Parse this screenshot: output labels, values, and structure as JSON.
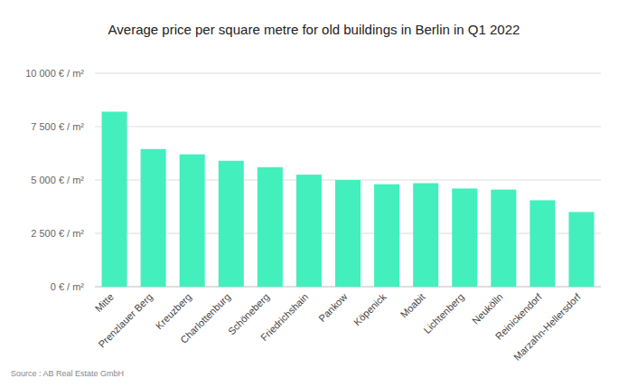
{
  "chart_data": {
    "type": "bar",
    "title": "Average price per square metre for old buildings in Berlin in Q1 2022",
    "categories": [
      "Mitte",
      "Prenzlauer Berg",
      "Kreuzberg",
      "Charlottenburg",
      "Schöneberg",
      "Friedrichshain",
      "Pankow",
      "Köpenick",
      "Moabit",
      "Lichtenberg",
      "Neukölln",
      "Reinickendorf",
      "Marzahn-Hellersdorf"
    ],
    "values": [
      8200,
      6450,
      6200,
      5900,
      5600,
      5250,
      5000,
      4800,
      4850,
      4600,
      4550,
      4050,
      3500
    ],
    "color": "#43efbc",
    "ylim": [
      0,
      10000
    ],
    "yticks": [
      {
        "value": 0,
        "label": "0 € / m²"
      },
      {
        "value": 2500,
        "label": "2 500 € / m²"
      },
      {
        "value": 5000,
        "label": "5 000 € / m²"
      },
      {
        "value": 7500,
        "label": "7 500 € / m²"
      },
      {
        "value": 10000,
        "label": "10 000 € / m²"
      }
    ],
    "grid": true,
    "source": "Source : AB Real Estate GmbH"
  }
}
